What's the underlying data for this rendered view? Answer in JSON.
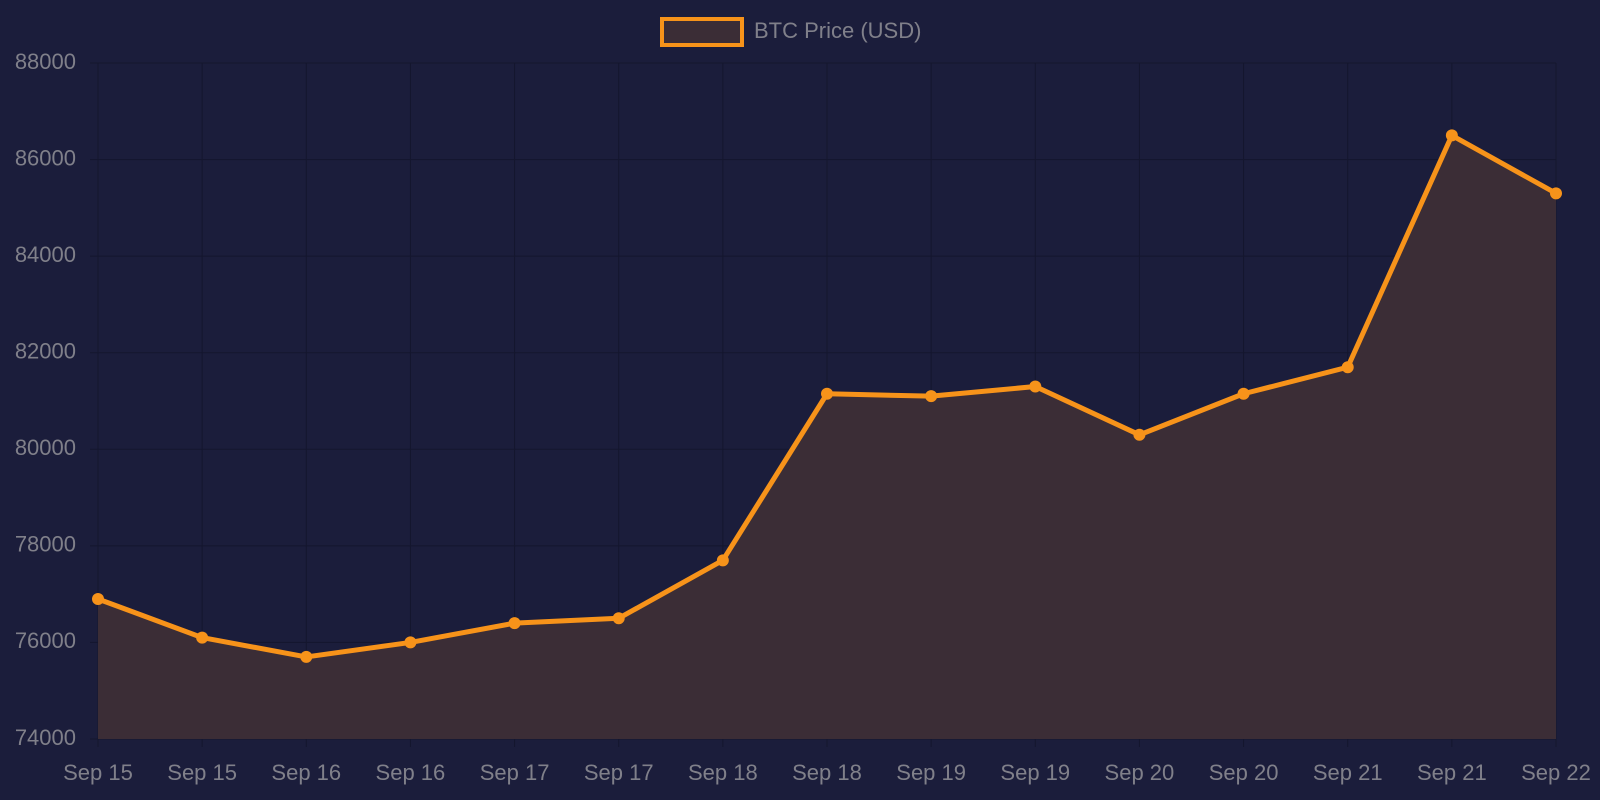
{
  "chart_data": {
    "type": "line",
    "categories": [
      "Sep 15",
      "Sep 15",
      "Sep 16",
      "Sep 16",
      "Sep 17",
      "Sep 17",
      "Sep 18",
      "Sep 18",
      "Sep 19",
      "Sep 19",
      "Sep 20",
      "Sep 20",
      "Sep 21",
      "Sep 21",
      "Sep 22"
    ],
    "series": [
      {
        "name": "BTC Price (USD)",
        "color": "#f7931a",
        "fill_color": "#3b2d36",
        "values": [
          76900,
          76100,
          75700,
          76000,
          76400,
          76500,
          77700,
          81150,
          81100,
          81300,
          80300,
          81150,
          81700,
          86500,
          85300
        ]
      }
    ],
    "ylim": [
      74000,
      88000
    ],
    "yticks": [
      74000,
      76000,
      78000,
      80000,
      82000,
      84000,
      86000,
      88000
    ],
    "grid": true,
    "fill": true,
    "legend": "top"
  }
}
